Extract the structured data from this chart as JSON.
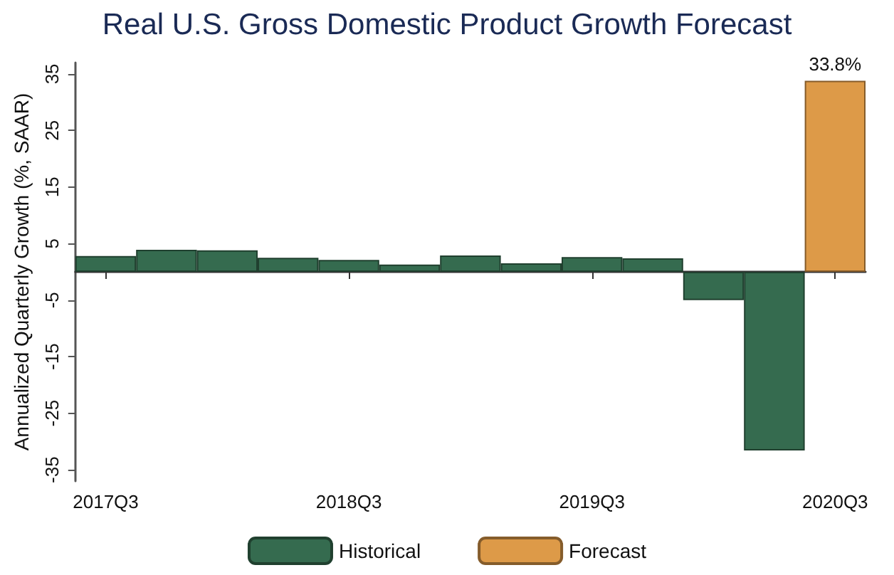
{
  "chart_data": {
    "type": "bar",
    "title": "Real U.S. Gross Domestic Product Growth Forecast",
    "ylabel": "Annualized Quarterly Growth (%, SAAR)",
    "categories": [
      "2017Q3",
      null,
      null,
      null,
      "2018Q3",
      null,
      null,
      null,
      "2019Q3",
      null,
      null,
      null,
      "2020Q3"
    ],
    "series": [
      {
        "name": "Historical",
        "color": "#356b4f",
        "values": [
          2.8,
          3.9,
          3.8,
          2.5,
          2.1,
          1.3,
          2.9,
          1.5,
          2.6,
          2.4,
          -5.0,
          -31.6,
          null
        ]
      },
      {
        "name": "Forecast",
        "color": "#dd9a48",
        "values": [
          null,
          null,
          null,
          null,
          null,
          null,
          null,
          null,
          null,
          null,
          null,
          null,
          33.8
        ],
        "value_labels": [
          null,
          null,
          null,
          null,
          null,
          null,
          null,
          null,
          null,
          null,
          null,
          null,
          "33.8%"
        ]
      }
    ],
    "stacked": true,
    "ylim": [
      -37,
      37
    ],
    "yticks": [
      -35,
      -25,
      -15,
      -5,
      5,
      15,
      25,
      35
    ],
    "grid": false,
    "legend": "bottom"
  }
}
